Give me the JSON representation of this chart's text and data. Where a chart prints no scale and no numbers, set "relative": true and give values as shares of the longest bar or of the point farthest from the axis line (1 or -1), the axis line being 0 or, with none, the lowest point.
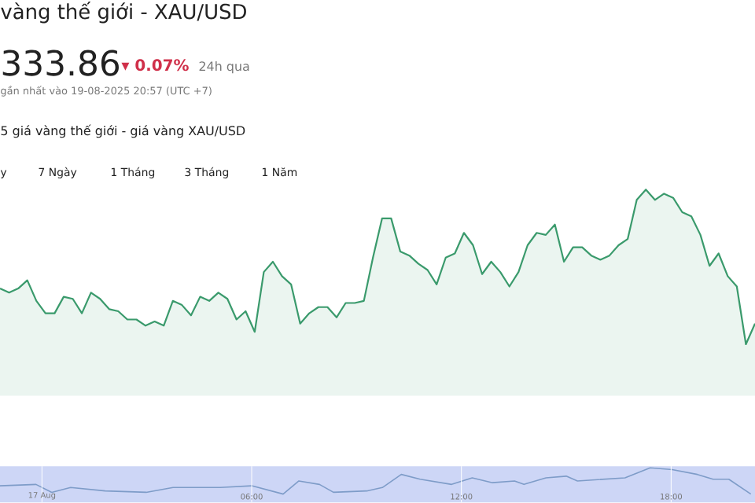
{
  "chart_data": [
    {
      "type": "area",
      "title": "vàng thế giới - XAU/USD",
      "relative": true,
      "annotations": [
        "333.86",
        "▾ 0.07%",
        "24h qua",
        "gần nhất vào 19-08-2025 20:57 (UTC +7)",
        "5 giá vàng thế giới - giá vàng XAU/USD",
        "y",
        "7 Ngày",
        "1 Tháng",
        "3 Tháng",
        "1 Năm"
      ],
      "categories": [
        null,
        null,
        null,
        null,
        null,
        null,
        null,
        null,
        null,
        null,
        null,
        null,
        null,
        null,
        null,
        null,
        null,
        null,
        null,
        null,
        null,
        null,
        null,
        null,
        null,
        null,
        null,
        null,
        null,
        null,
        null,
        null,
        null,
        null,
        null,
        null,
        null,
        null,
        null,
        null,
        null,
        null,
        null,
        null,
        null,
        null,
        null,
        null,
        null,
        null,
        null,
        null,
        null,
        null,
        null,
        null,
        null,
        null,
        null,
        null,
        null,
        null,
        null,
        null,
        null,
        null,
        null,
        null,
        null,
        null,
        null,
        null,
        null,
        null,
        null,
        null,
        null,
        null,
        null,
        null,
        null,
        null,
        null,
        null
      ],
      "series": [
        {
          "color": "#3a9a6c",
          "values": [
            0.52,
            0.5,
            0.52,
            0.56,
            0.46,
            0.4,
            0.4,
            0.48,
            0.47,
            0.4,
            0.5,
            0.47,
            0.42,
            0.41,
            0.37,
            0.37,
            0.34,
            0.36,
            0.34,
            0.46,
            0.44,
            0.39,
            0.48,
            0.46,
            0.5,
            0.47,
            0.37,
            0.41,
            0.31,
            0.6,
            0.65,
            0.58,
            0.54,
            0.35,
            0.4,
            0.43,
            0.43,
            0.38,
            0.45,
            0.45,
            0.46,
            0.67,
            0.86,
            0.86,
            0.7,
            0.68,
            0.64,
            0.61,
            0.54,
            0.67,
            0.69,
            0.79,
            0.73,
            0.59,
            0.65,
            0.6,
            0.53,
            0.6,
            0.73,
            0.79,
            0.78,
            0.83,
            0.65,
            0.72,
            0.72,
            0.68,
            0.66,
            0.68,
            0.73,
            0.76,
            0.95,
            1,
            0.95,
            0.98,
            0.96,
            0.89,
            0.87,
            0.78,
            0.63,
            0.69,
            0.58,
            0.53,
            0.25,
            0.35
          ]
        }
      ]
    },
    {
      "type": "line",
      "relative": true,
      "grid": "x",
      "xlim": [
        -1.2,
        20.4
      ],
      "xticks": [
        {
          "value": 0,
          "label": "17 Aug"
        },
        {
          "value": 6,
          "label": "06:00"
        },
        {
          "value": 12,
          "label": "12:00"
        },
        {
          "value": 18,
          "label": "18:00"
        }
      ],
      "bands": [
        {
          "axis": "x",
          "from": -1.2,
          "to": 20.4,
          "color": "#cdd6f6"
        }
      ],
      "series": [
        {
          "color": "#7e9cc8",
          "x": [
            -1.2,
            -0.17,
            0.28,
            0.82,
            1.81,
            2.98,
            3.75,
            5.1,
            6,
            6.9,
            7.35,
            7.94,
            8.34,
            9.29,
            9.74,
            10.28,
            10.82,
            11.72,
            12.31,
            12.89,
            13.52,
            13.79,
            14.42,
            15.0,
            15.32,
            16.68,
            17.4,
            18.03,
            18.75,
            19.2,
            19.65,
            20.28
          ],
          "values": [
            0.48,
            0.52,
            0.29,
            0.43,
            0.33,
            0.29,
            0.43,
            0.43,
            0.48,
            0.24,
            0.62,
            0.52,
            0.29,
            0.33,
            0.43,
            0.81,
            0.67,
            0.52,
            0.71,
            0.57,
            0.62,
            0.52,
            0.71,
            0.76,
            0.62,
            0.71,
            1,
            0.95,
            0.81,
            0.67,
            0.67,
            0.24
          ]
        }
      ]
    }
  ]
}
